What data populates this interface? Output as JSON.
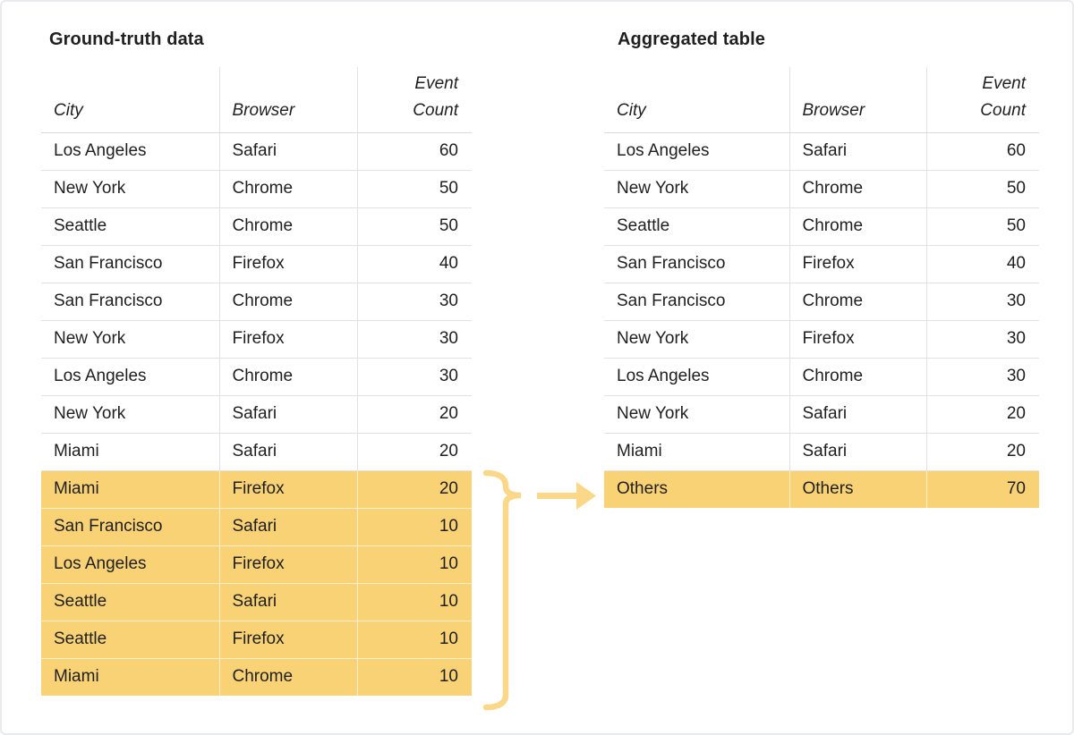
{
  "colors": {
    "highlight": "#F9D276",
    "annotation": "#FBD78A",
    "row_border": "#E2E2E2",
    "header_border": "#D9D9D9",
    "text": "#1F1F1F",
    "frame_border": "#E8EAED"
  },
  "left_table": {
    "title": "Ground-truth data",
    "columns": [
      "City",
      "Browser",
      "Event\nCount"
    ],
    "rows": [
      {
        "city": "Los Angeles",
        "browser": "Safari",
        "count": "60",
        "highlighted": false
      },
      {
        "city": "New York",
        "browser": "Chrome",
        "count": "50",
        "highlighted": false
      },
      {
        "city": "Seattle",
        "browser": "Chrome",
        "count": "50",
        "highlighted": false
      },
      {
        "city": "San Francisco",
        "browser": "Firefox",
        "count": "40",
        "highlighted": false
      },
      {
        "city": "San Francisco",
        "browser": "Chrome",
        "count": "30",
        "highlighted": false
      },
      {
        "city": "New York",
        "browser": "Firefox",
        "count": "30",
        "highlighted": false
      },
      {
        "city": "Los Angeles",
        "browser": "Chrome",
        "count": "30",
        "highlighted": false
      },
      {
        "city": "New York",
        "browser": "Safari",
        "count": "20",
        "highlighted": false
      },
      {
        "city": "Miami",
        "browser": "Safari",
        "count": "20",
        "highlighted": false
      },
      {
        "city": "Miami",
        "browser": "Firefox",
        "count": "20",
        "highlighted": true
      },
      {
        "city": "San Francisco",
        "browser": "Safari",
        "count": "10",
        "highlighted": true
      },
      {
        "city": "Los Angeles",
        "browser": "Firefox",
        "count": "10",
        "highlighted": true
      },
      {
        "city": "Seattle",
        "browser": "Safari",
        "count": "10",
        "highlighted": true
      },
      {
        "city": "Seattle",
        "browser": "Firefox",
        "count": "10",
        "highlighted": true
      },
      {
        "city": "Miami",
        "browser": "Chrome",
        "count": "10",
        "highlighted": true
      }
    ]
  },
  "right_table": {
    "title": "Aggregated table",
    "columns": [
      "City",
      "Browser",
      "Event\nCount"
    ],
    "rows": [
      {
        "city": "Los Angeles",
        "browser": "Safari",
        "count": "60",
        "highlighted": false
      },
      {
        "city": "New York",
        "browser": "Chrome",
        "count": "50",
        "highlighted": false
      },
      {
        "city": "Seattle",
        "browser": "Chrome",
        "count": "50",
        "highlighted": false
      },
      {
        "city": "San Francisco",
        "browser": "Firefox",
        "count": "40",
        "highlighted": false
      },
      {
        "city": "San Francisco",
        "browser": "Chrome",
        "count": "30",
        "highlighted": false
      },
      {
        "city": "New York",
        "browser": "Firefox",
        "count": "30",
        "highlighted": false
      },
      {
        "city": "Los Angeles",
        "browser": "Chrome",
        "count": "30",
        "highlighted": false
      },
      {
        "city": "New York",
        "browser": "Safari",
        "count": "20",
        "highlighted": false
      },
      {
        "city": "Miami",
        "browser": "Safari",
        "count": "20",
        "highlighted": false
      },
      {
        "city": "Others",
        "browser": "Others",
        "count": "70",
        "highlighted": true
      }
    ]
  },
  "annotation": {
    "brace_icon": "curly-brace-right",
    "arrow_icon": "arrow-right"
  }
}
